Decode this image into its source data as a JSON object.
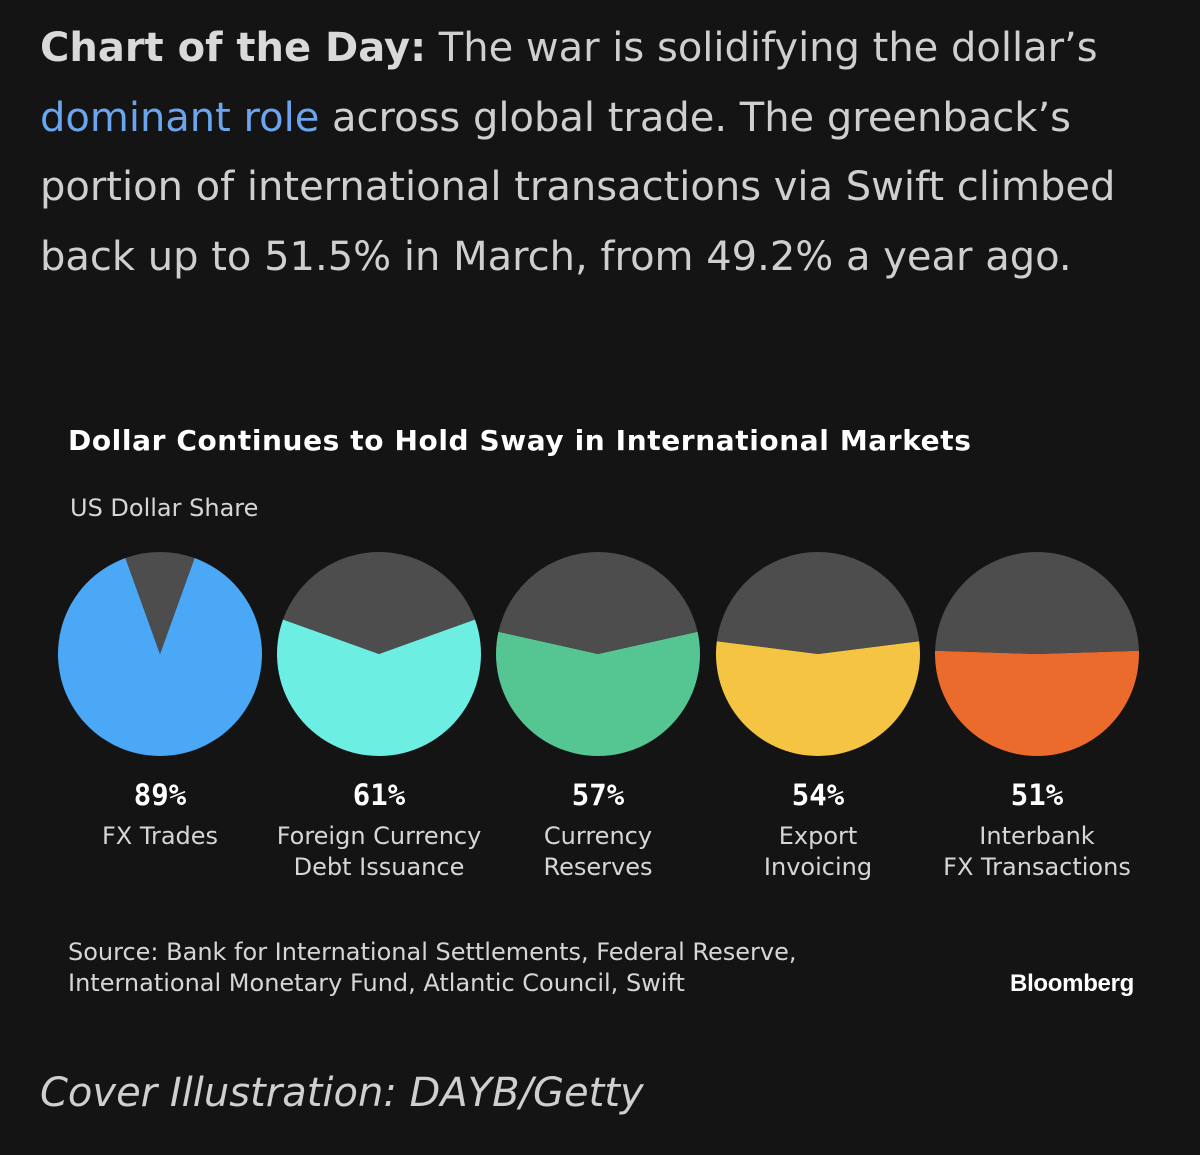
{
  "intro": {
    "lead": "Chart of the Day:",
    "text_1": " The war is solidifying the dollar’s ",
    "link": "dominant role",
    "text_2": " across global trade. The greenback’s portion of international transactions via Swift climbed back up to 51.5% in March, from 49.2% a year ago."
  },
  "colors": {
    "background": "#141414",
    "remainder": "#4d4d4d",
    "link": "#6aa5ee"
  },
  "chart_data": {
    "type": "pie",
    "title": "Dollar Continues to Hold Sway in International Markets",
    "subtitle": "US Dollar Share",
    "pies": [
      {
        "label_lines": [
          "FX Trades"
        ],
        "value": 89,
        "value_label": "89%",
        "color": "#4aa8f6"
      },
      {
        "label_lines": [
          "Foreign Currency",
          "Debt Issuance"
        ],
        "value": 61,
        "value_label": "61%",
        "color": "#6ceee3"
      },
      {
        "label_lines": [
          "Currency",
          "Reserves"
        ],
        "value": 57,
        "value_label": "57%",
        "color": "#55c692"
      },
      {
        "label_lines": [
          "Export",
          "Invoicing"
        ],
        "value": 54,
        "value_label": "54%",
        "color": "#f5c443"
      },
      {
        "label_lines": [
          "Interbank",
          "FX Transactions"
        ],
        "value": 51,
        "value_label": "51%",
        "color": "#eb6b2d"
      }
    ]
  },
  "source": {
    "line_1": "Source: Bank for International Settlements, Federal Reserve,",
    "line_2": "International Monetary Fund, Atlantic Council, Swift"
  },
  "brand": "Bloomberg",
  "cover": "Cover Illustration: DAYB/Getty"
}
